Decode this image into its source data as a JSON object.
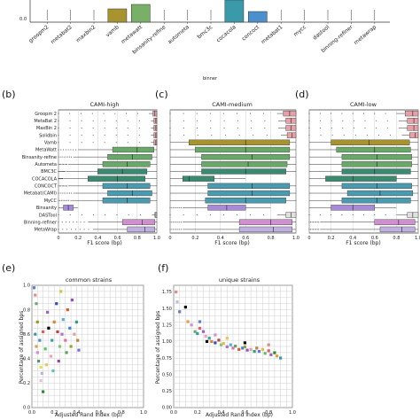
{
  "colors": {
    "groopm2": "#5b7fc0",
    "metabat2": "#e08a8a",
    "maxbin2": "#6aaa6a",
    "vamb": "#a8942e",
    "metawatt": "#79b067",
    "binsanity_refine": "#b8c8e8",
    "autometa": "#5a9a62",
    "bmc3c": "#3a8a72",
    "cocacola": "#3a9aaa",
    "concoct": "#4a90cc",
    "metabat1": "#6a8fb0",
    "mycc": "#5aa0a8",
    "dastool": "#e0e0e0",
    "binning_refiner": "#d090d0",
    "metawrap": "#c0b0e0",
    "solidbin": "#8a8a3a",
    "binsanity": "#b08ad8"
  },
  "top_panel": {
    "xlabel": "binner",
    "ytick_visible": "0.0",
    "categories": [
      "groopm2",
      "metabat2",
      "maxbin2",
      "vamb",
      "metawatt",
      "binsanity-refine",
      "autometa",
      "bmc3c",
      "cocacola",
      "concoct",
      "metabat1",
      "mycc",
      "dastool",
      "binning-refiner",
      "metawrap"
    ]
  },
  "panel_b": {
    "letter": "(b)",
    "title": "CAMI-high",
    "xlabel": "F1 score (bp)"
  },
  "panel_c": {
    "letter": "(c)",
    "title": "CAMI-medium",
    "xlabel": "F1 score (bp)"
  },
  "panel_d": {
    "letter": "(d)",
    "title": "CAMI-low",
    "xlabel": "F1 score (bp)"
  },
  "panel_e": {
    "letter": "(e)",
    "title": "common strains",
    "xlabel": "Adjusted Rand index (bp)",
    "ylabel": "Percentage of assigned bps"
  },
  "panel_f": {
    "letter": "(f)",
    "title": "unique strains",
    "xlabel": "Adjusted Rand index (bp)",
    "ylabel": "Percentage of assigned bps"
  },
  "chart_data": [
    {
      "type": "bar",
      "id": "top",
      "categories": [
        "groopm2",
        "metabat2",
        "maxbin2",
        "vamb",
        "metawatt",
        "binsanity-refine",
        "autometa",
        "bmc3c",
        "cocacola",
        "concoct",
        "metabat1",
        "mycc",
        "dastool",
        "binning-refiner",
        "metawrap"
      ],
      "values": [
        0.0,
        0.0,
        0.0,
        0.15,
        0.2,
        0.0,
        0.0,
        0.0,
        0.25,
        0.12,
        0.0,
        0.0,
        0.0,
        0.0,
        0.0
      ],
      "xlabel": "binner",
      "ylim": [
        0,
        0.25
      ]
    },
    {
      "type": "box",
      "id": "b",
      "title": "CAMI-high",
      "xlabel": "F1 score (bp)",
      "xlim": [
        0,
        1
      ],
      "xticks": [
        "0",
        "0.2",
        "0.4",
        "0.6",
        "0.8",
        "1.0"
      ],
      "categories": [
        "Groopm 2",
        "MetaBat 2",
        "MaxBin 2",
        "Solidbin",
        "Vamb",
        "MetaWatt",
        "Binsanity-refine",
        "Autometa",
        "BMC3C",
        "COCACOLA",
        "CONCOCT",
        "Metabat(CAMI)",
        "MyCC",
        "Binsanity",
        "DASTool",
        "Binning-refiner",
        "MetaWrap"
      ],
      "boxes": [
        {
          "q1": 0.96,
          "med": 0.98,
          "q3": 1.0,
          "wlo": 0.92,
          "whi": 1.0,
          "c": "#e8a0a8"
        },
        {
          "q1": 0.97,
          "med": 0.99,
          "q3": 1.0,
          "wlo": 0.94,
          "whi": 1.0,
          "c": "#e8a0a8"
        },
        {
          "q1": 0.97,
          "med": 0.99,
          "q3": 1.0,
          "wlo": 0.94,
          "whi": 1.0,
          "c": "#e8a0a8"
        },
        {
          "q1": 0.97,
          "med": 0.99,
          "q3": 1.0,
          "wlo": 0.94,
          "whi": 1.0,
          "c": "#e8a0a8"
        },
        {
          "q1": 0.97,
          "med": 0.99,
          "q3": 1.0,
          "wlo": 0.94,
          "whi": 1.0,
          "c": "#e8a0a8"
        },
        {
          "q1": 0.55,
          "med": 0.8,
          "q3": 0.97,
          "wlo": 0.2,
          "whi": 1.0,
          "c": "#6aa86a"
        },
        {
          "q1": 0.5,
          "med": 0.75,
          "q3": 0.95,
          "wlo": 0.15,
          "whi": 1.0,
          "c": "#6aa86a"
        },
        {
          "q1": 0.45,
          "med": 0.7,
          "q3": 0.93,
          "wlo": 0.1,
          "whi": 1.0,
          "c": "#6aa86a"
        },
        {
          "q1": 0.4,
          "med": 0.65,
          "q3": 0.9,
          "wlo": 0.08,
          "whi": 1.0,
          "c": "#3a8a72"
        },
        {
          "q1": 0.3,
          "med": 0.6,
          "q3": 0.88,
          "wlo": 0.05,
          "whi": 1.0,
          "c": "#3a8a72"
        },
        {
          "q1": 0.45,
          "med": 0.7,
          "q3": 0.93,
          "wlo": 0.1,
          "whi": 1.0,
          "c": "#4a9ab0"
        },
        {
          "q1": 0.5,
          "med": 0.75,
          "q3": 0.95,
          "wlo": 0.15,
          "whi": 1.0,
          "c": "#4a9ab0"
        },
        {
          "q1": 0.45,
          "med": 0.7,
          "q3": 0.93,
          "wlo": 0.12,
          "whi": 1.0,
          "c": "#4a9ab0"
        },
        {
          "q1": 0.05,
          "med": 0.1,
          "q3": 0.15,
          "wlo": 0.0,
          "whi": 0.2,
          "c": "#a88ad8"
        },
        {
          "q1": 0.98,
          "med": 0.99,
          "q3": 1.0,
          "wlo": 0.95,
          "whi": 1.0,
          "c": "#e0e0e0"
        },
        {
          "q1": 0.65,
          "med": 0.85,
          "q3": 0.98,
          "wlo": 0.3,
          "whi": 1.0,
          "c": "#d090d0"
        },
        {
          "q1": 0.7,
          "med": 0.88,
          "q3": 0.98,
          "wlo": 0.35,
          "whi": 1.0,
          "c": "#c0b0e0"
        }
      ]
    },
    {
      "type": "box",
      "id": "c",
      "title": "CAMI-medium",
      "xlabel": "F1 score (bp)",
      "xlim": [
        0,
        1
      ],
      "xticks": [
        "0",
        "0.2",
        "0.4",
        "0.6",
        "0.8",
        "1.0"
      ],
      "boxes": [
        {
          "q1": 0.9,
          "med": 0.95,
          "q3": 1.0,
          "wlo": 0.85,
          "whi": 1.0,
          "c": "#e8a0a8"
        },
        {
          "q1": 0.92,
          "med": 0.96,
          "q3": 1.0,
          "wlo": 0.86,
          "whi": 1.0,
          "c": "#e8a0a8"
        },
        {
          "q1": 0.92,
          "med": 0.96,
          "q3": 1.0,
          "wlo": 0.86,
          "whi": 1.0,
          "c": "#e8a0a8"
        },
        {
          "q1": 0.93,
          "med": 0.97,
          "q3": 1.0,
          "wlo": 0.88,
          "whi": 1.0,
          "c": "#e8a0a8"
        },
        {
          "q1": 0.15,
          "med": 0.6,
          "q3": 0.95,
          "wlo": 0.0,
          "whi": 1.0,
          "c": "#a8942e"
        },
        {
          "q1": 0.2,
          "med": 0.6,
          "q3": 0.95,
          "wlo": 0.0,
          "whi": 1.0,
          "c": "#6aa86a"
        },
        {
          "q1": 0.25,
          "med": 0.65,
          "q3": 0.95,
          "wlo": 0.0,
          "whi": 1.0,
          "c": "#6aa86a"
        },
        {
          "q1": 0.25,
          "med": 0.62,
          "q3": 0.93,
          "wlo": 0.0,
          "whi": 1.0,
          "c": "#6aa86a"
        },
        {
          "q1": 0.25,
          "med": 0.6,
          "q3": 0.92,
          "wlo": 0.0,
          "whi": 1.0,
          "c": "#3a8a72"
        },
        {
          "q1": 0.1,
          "med": 0.15,
          "q3": 0.35,
          "wlo": 0.0,
          "whi": 0.6,
          "c": "#3a8a72"
        },
        {
          "q1": 0.3,
          "med": 0.65,
          "q3": 0.95,
          "wlo": 0.0,
          "whi": 1.0,
          "c": "#4a9ab0"
        },
        {
          "q1": 0.3,
          "med": 0.65,
          "q3": 0.95,
          "wlo": 0.0,
          "whi": 1.0,
          "c": "#4a9ab0"
        },
        {
          "q1": 0.28,
          "med": 0.6,
          "q3": 0.92,
          "wlo": 0.0,
          "whi": 1.0,
          "c": "#4a9ab0"
        },
        {
          "q1": 0.3,
          "med": 0.45,
          "q3": 0.6,
          "wlo": 0.1,
          "whi": 0.8,
          "c": "#a88ad8"
        },
        {
          "q1": 0.92,
          "med": 0.96,
          "q3": 1.0,
          "wlo": 0.85,
          "whi": 1.0,
          "c": "#e0e0e0"
        },
        {
          "q1": 0.55,
          "med": 0.8,
          "q3": 0.97,
          "wlo": 0.1,
          "whi": 1.0,
          "c": "#d090d0"
        },
        {
          "q1": 0.55,
          "med": 0.82,
          "q3": 0.97,
          "wlo": 0.1,
          "whi": 1.0,
          "c": "#c0b0e0"
        }
      ]
    },
    {
      "type": "box",
      "id": "d",
      "title": "CAMI-low",
      "xlabel": "F1 score (bp)",
      "xlim": [
        0,
        1
      ],
      "xticks": [
        "0",
        "0.2",
        "0.4",
        "0.6",
        "0.8",
        "1.0"
      ],
      "boxes": [
        {
          "q1": 0.88,
          "med": 0.95,
          "q3": 1.0,
          "wlo": 0.8,
          "whi": 1.0,
          "c": "#e8a0a8"
        },
        {
          "q1": 0.9,
          "med": 0.96,
          "q3": 1.0,
          "wlo": 0.82,
          "whi": 1.0,
          "c": "#e8a0a8"
        },
        {
          "q1": 0.9,
          "med": 0.96,
          "q3": 1.0,
          "wlo": 0.82,
          "whi": 1.0,
          "c": "#e8a0a8"
        },
        {
          "q1": 0.92,
          "med": 0.97,
          "q3": 1.0,
          "wlo": 0.85,
          "whi": 1.0,
          "c": "#e8a0a8"
        },
        {
          "q1": 0.2,
          "med": 0.55,
          "q3": 0.92,
          "wlo": 0.0,
          "whi": 1.0,
          "c": "#a8942e"
        },
        {
          "q1": 0.25,
          "med": 0.6,
          "q3": 0.93,
          "wlo": 0.0,
          "whi": 1.0,
          "c": "#6aa86a"
        },
        {
          "q1": 0.3,
          "med": 0.62,
          "q3": 0.94,
          "wlo": 0.0,
          "whi": 1.0,
          "c": "#6aa86a"
        },
        {
          "q1": 0.3,
          "med": 0.62,
          "q3": 0.94,
          "wlo": 0.0,
          "whi": 1.0,
          "c": "#6aa86a"
        },
        {
          "q1": 0.3,
          "med": 0.6,
          "q3": 0.93,
          "wlo": 0.0,
          "whi": 1.0,
          "c": "#3a8a72"
        },
        {
          "q1": 0.15,
          "med": 0.4,
          "q3": 0.8,
          "wlo": 0.0,
          "whi": 1.0,
          "c": "#3a8a72"
        },
        {
          "q1": 0.3,
          "med": 0.62,
          "q3": 0.94,
          "wlo": 0.0,
          "whi": 1.0,
          "c": "#4a9ab0"
        },
        {
          "q1": 0.35,
          "med": 0.65,
          "q3": 0.95,
          "wlo": 0.0,
          "whi": 1.0,
          "c": "#4a9ab0"
        },
        {
          "q1": 0.3,
          "med": 0.62,
          "q3": 0.93,
          "wlo": 0.0,
          "whi": 1.0,
          "c": "#4a9ab0"
        },
        {
          "q1": 0.2,
          "med": 0.4,
          "q3": 0.6,
          "wlo": 0.0,
          "whi": 0.8,
          "c": "#a88ad8"
        },
        {
          "q1": 0.9,
          "med": 0.95,
          "q3": 1.0,
          "wlo": 0.8,
          "whi": 1.0,
          "c": "#e0e0e0"
        },
        {
          "q1": 0.6,
          "med": 0.82,
          "q3": 0.97,
          "wlo": 0.1,
          "whi": 1.0,
          "c": "#d090d0"
        },
        {
          "q1": 0.65,
          "med": 0.85,
          "q3": 0.97,
          "wlo": 0.1,
          "whi": 1.0,
          "c": "#c0b0e0"
        }
      ]
    },
    {
      "type": "scatter",
      "id": "e",
      "title": "common strains",
      "xlabel": "Adjusted Rand index (bp)",
      "ylabel": "Percentage of assigned bps",
      "xlim": [
        0,
        1.0
      ],
      "ylim": [
        0,
        1.0
      ],
      "xticks": [
        "0.0",
        "0.2",
        "0.4",
        "0.6",
        "0.8",
        "1.0"
      ],
      "yticks": [
        "0.0",
        "0.2",
        "0.4",
        "0.6",
        "0.8",
        "1.0"
      ],
      "points": [
        {
          "x": 0.02,
          "y": 0.98,
          "c": "#5b7fc0"
        },
        {
          "x": 0.03,
          "y": 0.92,
          "c": "#e08a8a"
        },
        {
          "x": 0.04,
          "y": 0.85,
          "c": "#6aaa6a"
        },
        {
          "x": 0.05,
          "y": 0.7,
          "c": "#a8942e"
        },
        {
          "x": 0.03,
          "y": 0.6,
          "c": "#3a9aaa"
        },
        {
          "x": 0.04,
          "y": 0.5,
          "c": "#e0a040"
        },
        {
          "x": 0.05,
          "y": 0.45,
          "c": "#d090d0"
        },
        {
          "x": 0.06,
          "y": 0.38,
          "c": "#5a9a62"
        },
        {
          "x": 0.08,
          "y": 0.33,
          "c": "#e0e040"
        },
        {
          "x": 0.09,
          "y": 0.28,
          "c": "#c0b0e0"
        },
        {
          "x": 0.07,
          "y": 0.55,
          "c": "#4a90cc"
        },
        {
          "x": 0.1,
          "y": 0.62,
          "c": "#e06060"
        },
        {
          "x": 0.12,
          "y": 0.48,
          "c": "#60c060"
        },
        {
          "x": 0.14,
          "y": 0.78,
          "c": "#a060c0"
        },
        {
          "x": 0.15,
          "y": 0.65,
          "c": "#000000"
        },
        {
          "x": 0.17,
          "y": 0.42,
          "c": "#f0a0c0"
        },
        {
          "x": 0.18,
          "y": 0.55,
          "c": "#40a0a0"
        },
        {
          "x": 0.2,
          "y": 0.7,
          "c": "#e08030"
        },
        {
          "x": 0.22,
          "y": 0.85,
          "c": "#3050c0"
        },
        {
          "x": 0.23,
          "y": 0.62,
          "c": "#c04040"
        },
        {
          "x": 0.25,
          "y": 0.5,
          "c": "#80c080"
        },
        {
          "x": 0.26,
          "y": 0.95,
          "c": "#e0c040"
        },
        {
          "x": 0.27,
          "y": 0.6,
          "c": "#b070d0"
        },
        {
          "x": 0.28,
          "y": 0.72,
          "c": "#50b0e0"
        },
        {
          "x": 0.3,
          "y": 0.55,
          "c": "#e070a0"
        },
        {
          "x": 0.31,
          "y": 0.45,
          "c": "#60a060"
        },
        {
          "x": 0.32,
          "y": 0.8,
          "c": "#d06030"
        },
        {
          "x": 0.34,
          "y": 0.65,
          "c": "#4080d0"
        },
        {
          "x": 0.35,
          "y": 0.5,
          "c": "#a0a030"
        },
        {
          "x": 0.36,
          "y": 0.88,
          "c": "#9050c0"
        },
        {
          "x": 0.38,
          "y": 0.6,
          "c": "#e0a0a0"
        },
        {
          "x": 0.4,
          "y": 0.7,
          "c": "#30a080"
        },
        {
          "x": 0.41,
          "y": 0.55,
          "c": "#c08040"
        },
        {
          "x": 0.42,
          "y": 0.47,
          "c": "#7070e0"
        },
        {
          "x": 0.1,
          "y": 0.13,
          "c": "#2a8a2a"
        },
        {
          "x": 0.08,
          "y": 0.22,
          "c": "#e0c0e0"
        },
        {
          "x": 0.13,
          "y": 0.35,
          "c": "#f0c060"
        },
        {
          "x": 0.19,
          "y": 0.3,
          "c": "#60c0c0"
        },
        {
          "x": 0.24,
          "y": 0.38,
          "c": "#a040a0"
        }
      ]
    },
    {
      "type": "scatter",
      "id": "f",
      "title": "unique strains",
      "xlabel": "Adjusted Rand index (bp)",
      "ylabel": "Percentage of assigned bps",
      "xlim": [
        0,
        1.0
      ],
      "ylim": [
        0,
        1.85
      ],
      "xticks": [
        "0.0",
        "0.2",
        "0.4",
        "0.6",
        "0.8",
        "1.0"
      ],
      "yticks": [
        "0.00",
        "0.25",
        "0.50",
        "0.75",
        "1.00",
        "1.25",
        "1.50",
        "1.75"
      ],
      "points": [
        {
          "x": 0.02,
          "y": 1.75,
          "c": "#e08a8a"
        },
        {
          "x": 0.03,
          "y": 1.6,
          "c": "#c0c0e0"
        },
        {
          "x": 0.05,
          "y": 1.45,
          "c": "#5b7fc0"
        },
        {
          "x": 0.1,
          "y": 1.52,
          "c": "#000000"
        },
        {
          "x": 0.12,
          "y": 1.3,
          "c": "#e0a040"
        },
        {
          "x": 0.15,
          "y": 1.25,
          "c": "#d090d0"
        },
        {
          "x": 0.18,
          "y": 1.15,
          "c": "#6aaa6a"
        },
        {
          "x": 0.2,
          "y": 1.12,
          "c": "#3a9aaa"
        },
        {
          "x": 0.22,
          "y": 1.2,
          "c": "#e06060"
        },
        {
          "x": 0.25,
          "y": 1.15,
          "c": "#a060c0"
        },
        {
          "x": 0.27,
          "y": 1.08,
          "c": "#f0a0c0"
        },
        {
          "x": 0.28,
          "y": 1.0,
          "c": "#000000"
        },
        {
          "x": 0.3,
          "y": 1.05,
          "c": "#40a0a0"
        },
        {
          "x": 0.32,
          "y": 1.0,
          "c": "#e08030"
        },
        {
          "x": 0.35,
          "y": 0.98,
          "c": "#3050c0"
        },
        {
          "x": 0.38,
          "y": 1.02,
          "c": "#c04040"
        },
        {
          "x": 0.4,
          "y": 0.95,
          "c": "#80c080"
        },
        {
          "x": 0.42,
          "y": 0.97,
          "c": "#e0c040"
        },
        {
          "x": 0.45,
          "y": 0.92,
          "c": "#b070d0"
        },
        {
          "x": 0.48,
          "y": 0.95,
          "c": "#50b0e0"
        },
        {
          "x": 0.5,
          "y": 0.9,
          "c": "#e070a0"
        },
        {
          "x": 0.52,
          "y": 0.93,
          "c": "#60a060"
        },
        {
          "x": 0.55,
          "y": 0.88,
          "c": "#d06030"
        },
        {
          "x": 0.58,
          "y": 0.9,
          "c": "#4080d0"
        },
        {
          "x": 0.6,
          "y": 0.92,
          "c": "#a0a030"
        },
        {
          "x": 0.62,
          "y": 0.87,
          "c": "#9050c0"
        },
        {
          "x": 0.65,
          "y": 0.88,
          "c": "#e0a0a0"
        },
        {
          "x": 0.68,
          "y": 0.85,
          "c": "#30a080"
        },
        {
          "x": 0.7,
          "y": 0.9,
          "c": "#c08040"
        },
        {
          "x": 0.72,
          "y": 0.85,
          "c": "#7070e0"
        },
        {
          "x": 0.75,
          "y": 0.88,
          "c": "#e0c040"
        },
        {
          "x": 0.77,
          "y": 0.82,
          "c": "#60c060"
        },
        {
          "x": 0.8,
          "y": 0.86,
          "c": "#e06060"
        },
        {
          "x": 0.82,
          "y": 0.8,
          "c": "#a060c0"
        },
        {
          "x": 0.85,
          "y": 0.83,
          "c": "#2a8a2a"
        },
        {
          "x": 0.87,
          "y": 0.78,
          "c": "#e0a040"
        },
        {
          "x": 0.9,
          "y": 0.75,
          "c": "#3a9aaa"
        },
        {
          "x": 0.6,
          "y": 0.98,
          "c": "#000000"
        },
        {
          "x": 0.45,
          "y": 1.05,
          "c": "#f0c060"
        },
        {
          "x": 0.35,
          "y": 1.1,
          "c": "#d090d0"
        },
        {
          "x": 0.22,
          "y": 1.3,
          "c": "#5b7fc0"
        },
        {
          "x": 0.8,
          "y": 0.95,
          "c": "#e08a8a"
        }
      ]
    }
  ]
}
